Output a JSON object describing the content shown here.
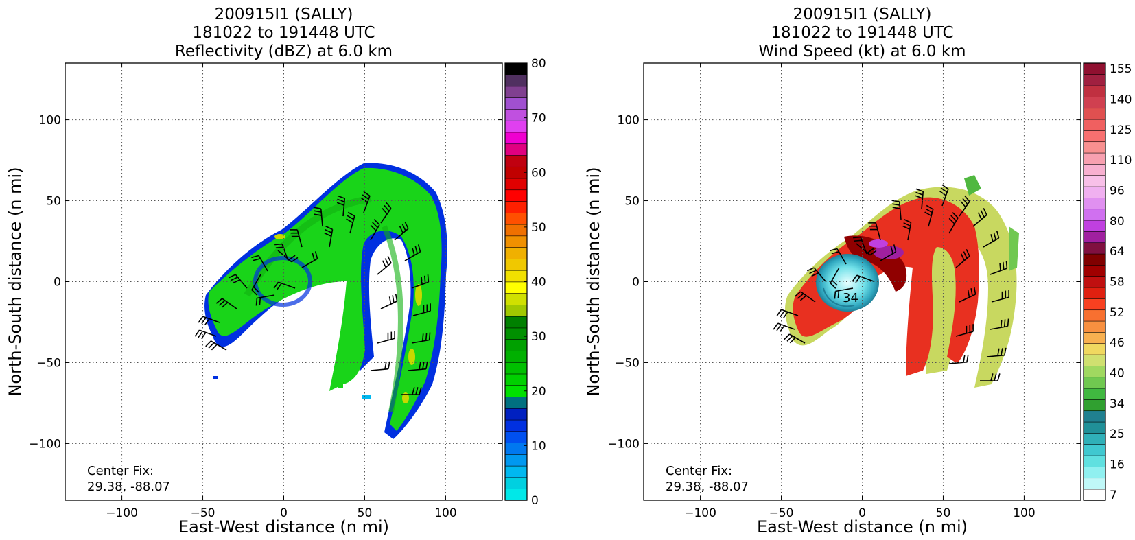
{
  "chart_data": [
    {
      "type": "heatmap",
      "title": [
        "200915I1 (SALLY)",
        "181022 to 191448 UTC",
        "Reflectivity (dBZ) at 6.0 km"
      ],
      "xlabel": "East-West distance (n mi)",
      "ylabel": "North-South distance (n mi)",
      "xlim": [
        -135,
        135
      ],
      "ylim": [
        -135,
        135
      ],
      "xticks": [
        -100,
        -50,
        0,
        50,
        100
      ],
      "yticks": [
        -100,
        -50,
        0,
        50,
        100
      ],
      "grid": true,
      "annotation": [
        "Center Fix:",
        "29.38, -88.07"
      ],
      "colorbar": {
        "min": 0,
        "max": 80,
        "ticks": [
          "0",
          "10",
          "20",
          "30",
          "40",
          "50",
          "60",
          "70",
          "80"
        ],
        "colors": [
          "#00e8e8",
          "#00d0e0",
          "#00b8f0",
          "#0098f0",
          "#0078f0",
          "#0050f0",
          "#0030e0",
          "#0020c0",
          "#007080",
          "#00e000",
          "#00d000",
          "#00c000",
          "#00b000",
          "#00a000",
          "#009000",
          "#008000",
          "#a0c800",
          "#d0e000",
          "#ffff00",
          "#f0e000",
          "#f0c800",
          "#f0b000",
          "#f09000",
          "#f07000",
          "#ff5000",
          "#ff2000",
          "#ff0000",
          "#e00000",
          "#c00000",
          "#c00010",
          "#e00080",
          "#f000d0",
          "#e040f0",
          "#c050e0",
          "#a050d0",
          "#804090",
          "#503060",
          "#000000"
        ]
      }
    },
    {
      "type": "heatmap",
      "title": [
        "200915I1 (SALLY)",
        "181022 to 191448 UTC",
        "Wind Speed (kt) at 6.0 km"
      ],
      "xlabel": "East-West distance (n mi)",
      "ylabel": "North-South distance (n mi)",
      "xlim": [
        -135,
        135
      ],
      "ylim": [
        -135,
        135
      ],
      "xticks": [
        -100,
        -50,
        0,
        50,
        100
      ],
      "yticks": [
        -100,
        -50,
        0,
        50,
        100
      ],
      "grid": true,
      "annotation": [
        "Center Fix:",
        "29.38, -88.07"
      ],
      "colorbar": {
        "ticks": [
          "7",
          "16",
          "25",
          "34",
          "40",
          "46",
          "52",
          "58",
          "64",
          "80",
          "96",
          "110",
          "125",
          "140",
          "155"
        ],
        "colors": [
          "#ffffff",
          "#c0f8f8",
          "#90f0f0",
          "#60e0e0",
          "#40c8d0",
          "#30b0b8",
          "#209098",
          "#208090",
          "#30a030",
          "#40b840",
          "#70c850",
          "#a0d860",
          "#d0e070",
          "#f0d860",
          "#f8b050",
          "#f89040",
          "#f87030",
          "#f84020",
          "#e02010",
          "#c01010",
          "#a00000",
          "#800000",
          "#801040",
          "#a020a0",
          "#c040e0",
          "#d070f0",
          "#e090f0",
          "#f0b0f0",
          "#f8c0e8",
          "#f8b0d0",
          "#f8a0b0",
          "#f89090",
          "#f87070",
          "#f06060",
          "#e05050",
          "#d04050",
          "#c03040",
          "#a02040",
          "#901030"
        ]
      },
      "contour_labels": [
        "34"
      ]
    }
  ]
}
